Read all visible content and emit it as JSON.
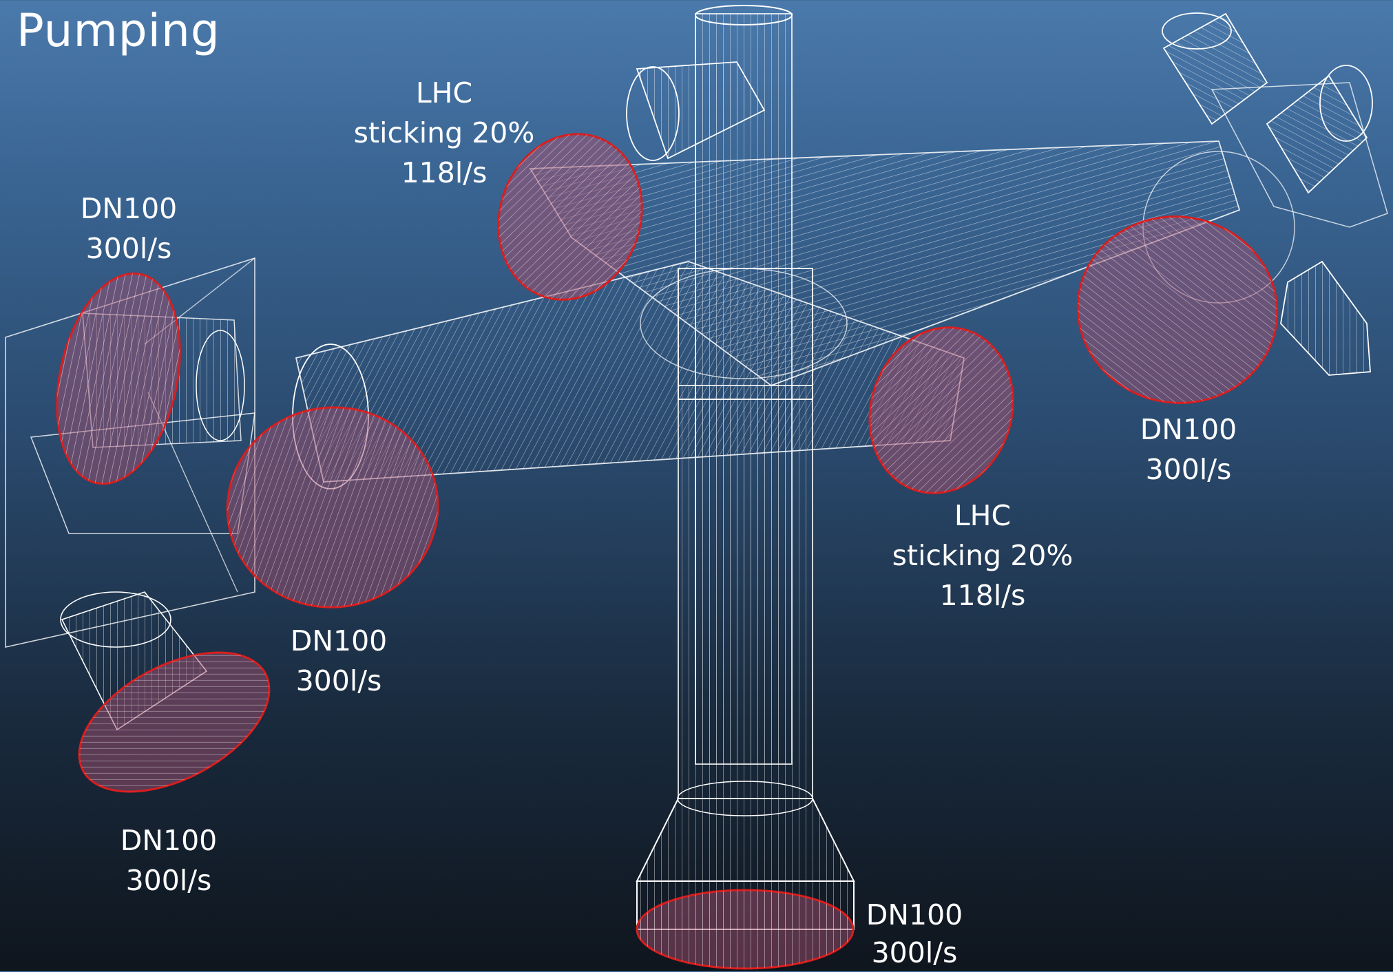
{
  "title": "Pumping",
  "labels": {
    "lhc_upper": {
      "line1": "LHC",
      "line2": "sticking 20%",
      "line3": "118l/s"
    },
    "lhc_lower": {
      "line1": "LHC",
      "line2": "sticking 20%",
      "line3": "118l/s"
    },
    "dn_left_top": {
      "line1": "DN100",
      "line2": "300l/s"
    },
    "dn_left_mid": {
      "line1": "DN100",
      "line2": "300l/s"
    },
    "dn_left_bottom": {
      "line1": "DN100",
      "line2": "300l/s"
    },
    "dn_right": {
      "line1": "DN100",
      "line2": "300l/s"
    },
    "dn_bottom": {
      "line1": "DN100",
      "line2": "300l/s"
    }
  },
  "colors": {
    "wire": "#ffffff",
    "port_outline": "#d81e1e",
    "port_fill": "#a05070"
  }
}
